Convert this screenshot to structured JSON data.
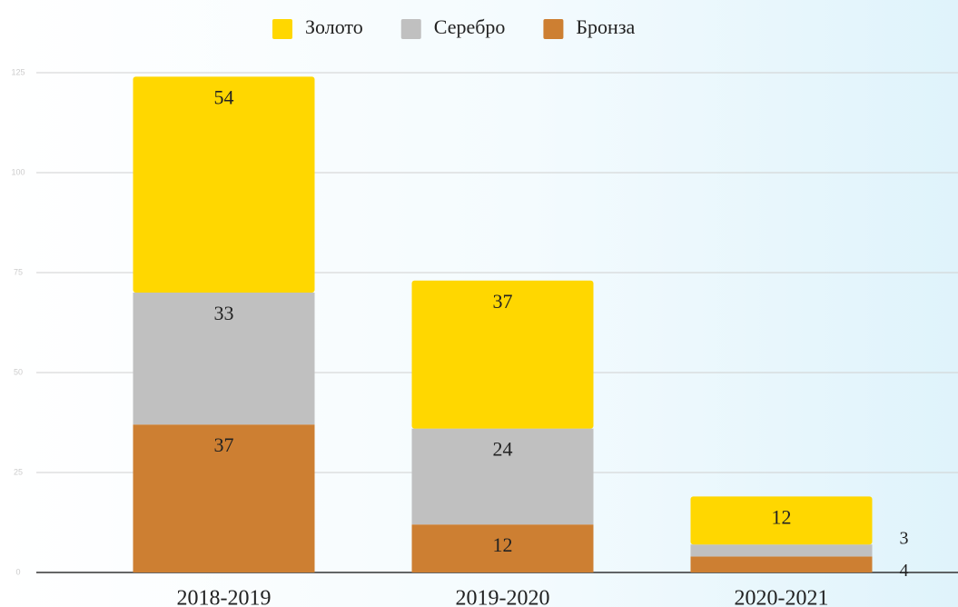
{
  "chart_data": {
    "type": "stacked_bar",
    "categories": [
      "2018-2019",
      "2019-2020",
      "2020-2021"
    ],
    "series": [
      {
        "name": "Бронза",
        "color": "#cd7f32",
        "values": [
          37,
          12,
          4
        ]
      },
      {
        "name": "Серебро",
        "color": "#c0c0c0",
        "values": [
          33,
          24,
          3
        ]
      },
      {
        "name": "Золото",
        "color": "#ffd700",
        "values": [
          54,
          37,
          12
        ]
      }
    ],
    "legend_order": [
      "Золото",
      "Серебро",
      "Бронза"
    ],
    "ylim": [
      0,
      125
    ],
    "yticks": [
      0,
      25,
      50,
      75,
      100,
      125
    ],
    "grid": true,
    "legend": "top"
  }
}
